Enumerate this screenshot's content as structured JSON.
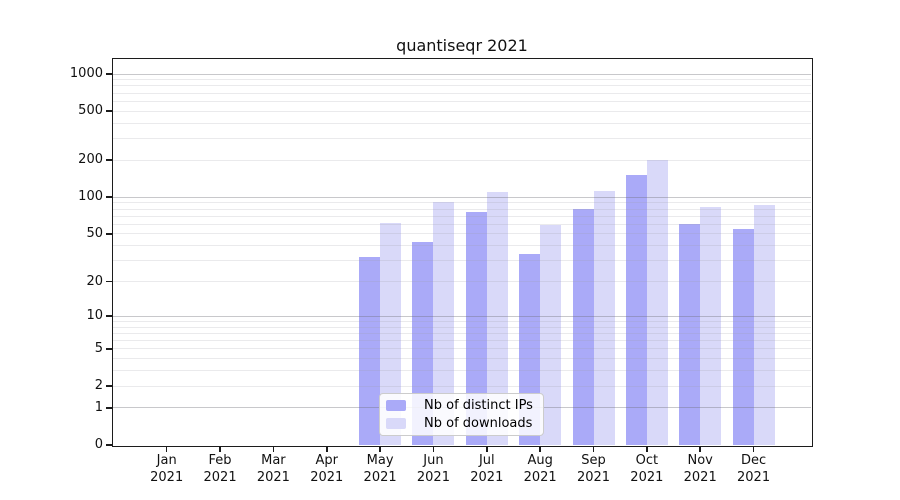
{
  "chart_data": {
    "type": "bar",
    "title": "quantiseqr 2021",
    "categories": [
      "Jan",
      "Feb",
      "Mar",
      "Apr",
      "May",
      "Jun",
      "Jul",
      "Aug",
      "Sep",
      "Oct",
      "Nov",
      "Dec"
    ],
    "category_year": "2021",
    "series": [
      {
        "name": "Nb of distinct IPs",
        "color": "#aaaaf8",
        "values": [
          0,
          0,
          0,
          0,
          32,
          43,
          75,
          34,
          80,
          152,
          60,
          55
        ]
      },
      {
        "name": "Nb of downloads",
        "color": "#d9d9f9",
        "values": [
          0,
          0,
          0,
          0,
          62,
          92,
          110,
          59,
          112,
          200,
          83,
          87
        ]
      }
    ],
    "y_axis": {
      "scale": "log10(value+1)",
      "tick_values": [
        0,
        1,
        2,
        5,
        10,
        20,
        50,
        100,
        200,
        500,
        1000
      ],
      "tick_labels": [
        "0",
        "1",
        "2",
        "5",
        "10",
        "20",
        "50",
        "100",
        "200",
        "500",
        "1000"
      ],
      "max": 1000
    },
    "x_axis": {
      "tick_labels_line1": [
        "Jan",
        "Feb",
        "Mar",
        "Apr",
        "May",
        "Jun",
        "Jul",
        "Aug",
        "Sep",
        "Oct",
        "Nov",
        "Dec"
      ],
      "tick_labels_line2": "2021"
    },
    "legend": {
      "position": "inside-bottom-center",
      "entries": [
        "Nb of distinct IPs",
        "Nb of downloads"
      ]
    },
    "grid": "horizontal log major+minor lines drawn over bars"
  }
}
